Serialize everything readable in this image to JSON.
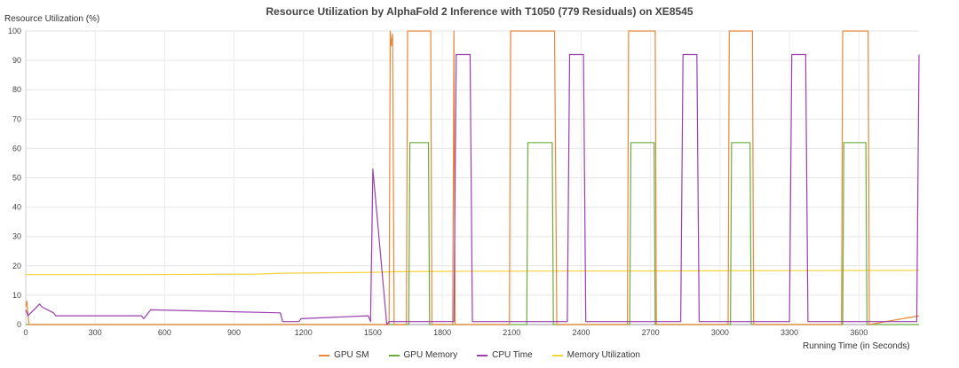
{
  "chart_data": {
    "type": "line",
    "title": "Resource Utilization by AlphaFold 2 Inference with T1050 (779 Residuals) on XE8545",
    "ylabel": "Resource Utilization (%)",
    "xlabel": "Running Time (in Seconds)",
    "xlim": [
      0,
      3860
    ],
    "ylim": [
      0,
      100
    ],
    "x_ticks": [
      0,
      300,
      600,
      900,
      1200,
      1500,
      1800,
      2100,
      2400,
      2700,
      3000,
      3300,
      3600
    ],
    "y_ticks": [
      0,
      10,
      20,
      30,
      40,
      50,
      60,
      70,
      80,
      90,
      100
    ],
    "grid": true,
    "legend_position": "bottom",
    "series": [
      {
        "name": "GPU SM",
        "color": "#e8873a",
        "x": [
          0,
          5,
          10,
          14,
          1570,
          1575,
          1580,
          1585,
          1592,
          1600,
          1645,
          1650,
          1660,
          1745,
          1750,
          1755,
          1845,
          1850,
          1855,
          2090,
          2095,
          2100,
          2160,
          2165,
          2170,
          2275,
          2285,
          2295,
          2600,
          2605,
          2610,
          2715,
          2720,
          2725,
          3035,
          3040,
          3045,
          3135,
          3140,
          3145,
          3525,
          3530,
          3535,
          3635,
          3640,
          3645,
          3860
        ],
        "y": [
          6,
          8,
          3,
          0,
          0,
          100,
          95,
          99,
          0,
          0,
          0,
          100,
          100,
          100,
          100,
          0,
          0,
          100,
          0,
          0,
          100,
          100,
          100,
          100,
          100,
          100,
          100,
          0,
          0,
          100,
          100,
          100,
          100,
          0,
          0,
          100,
          100,
          100,
          100,
          0,
          0,
          100,
          100,
          100,
          100,
          0,
          3
        ]
      },
      {
        "name": "GPU Memory",
        "color": "#6aad3d",
        "x": [
          0,
          1655,
          1660,
          1740,
          1745,
          2165,
          2170,
          2275,
          2280,
          2610,
          2615,
          2715,
          2720,
          3045,
          3050,
          3130,
          3135,
          3530,
          3535,
          3630,
          3635,
          3860
        ],
        "y": [
          0,
          0,
          62,
          62,
          0,
          0,
          62,
          62,
          0,
          0,
          62,
          62,
          0,
          0,
          62,
          62,
          0,
          0,
          62,
          62,
          0,
          0
        ]
      },
      {
        "name": "CPU Time",
        "color": "#9b3fb0",
        "x": [
          0,
          10,
          60,
          70,
          120,
          130,
          500,
          510,
          530,
          540,
          1100,
          1110,
          1180,
          1190,
          1480,
          1490,
          1500,
          1560,
          1570,
          1850,
          1860,
          1920,
          1930,
          2340,
          2350,
          2410,
          2420,
          2830,
          2840,
          2900,
          2910,
          3300,
          3310,
          3370,
          3380,
          3850,
          3860,
          3860
        ],
        "y": [
          5,
          3,
          7,
          6,
          4,
          3,
          3,
          2,
          4,
          5,
          4,
          1,
          1,
          2,
          3,
          1,
          53,
          0,
          1,
          1,
          92,
          92,
          1,
          1,
          92,
          92,
          1,
          1,
          92,
          92,
          1,
          1,
          92,
          92,
          1,
          1,
          92,
          92
        ]
      },
      {
        "name": "Memory Utilization",
        "color": "#f5d33b",
        "x": [
          0,
          500,
          1000,
          1100,
          1500,
          1600,
          2000,
          3000,
          3860
        ],
        "y": [
          17,
          17,
          17.2,
          17.5,
          17.8,
          18,
          18.2,
          18.3,
          18.5
        ]
      }
    ]
  }
}
